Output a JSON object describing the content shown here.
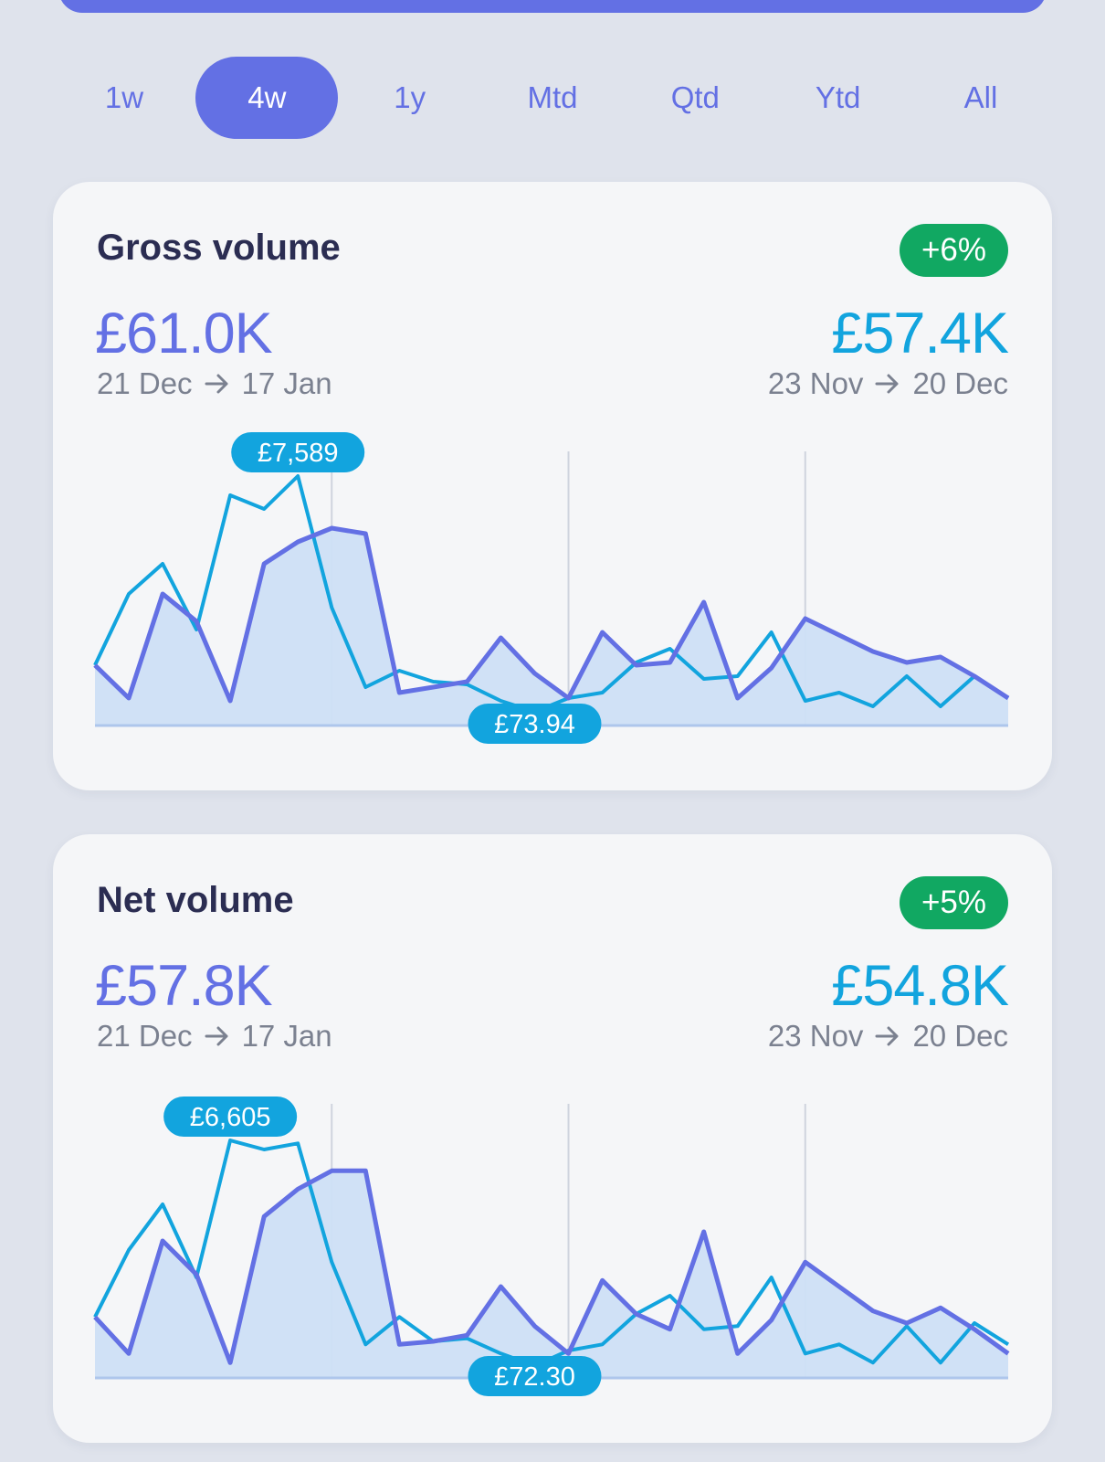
{
  "period_tabs": {
    "items": [
      "1w",
      "4w",
      "1y",
      "Mtd",
      "Qtd",
      "Ytd",
      "All"
    ],
    "active_index": 1
  },
  "cards": [
    {
      "title": "Gross volume",
      "change_badge": "+6%",
      "current_value": "£61.0K",
      "current_range": {
        "from": "21 Dec",
        "to": "17 Jan"
      },
      "previous_value": "£57.4K",
      "previous_range": {
        "from": "23 Nov",
        "to": "20 Dec"
      }
    },
    {
      "title": "Net volume",
      "change_badge": "+5%",
      "current_value": "£57.8K",
      "current_range": {
        "from": "21 Dec",
        "to": "17 Jan"
      },
      "previous_value": "£54.8K",
      "previous_range": {
        "from": "23 Nov",
        "to": "20 Dec"
      }
    }
  ],
  "colors": {
    "accent": "#6370e4",
    "previous": "#12a4de",
    "positive": "#11a862",
    "area_fill": "#cddff5"
  },
  "chart_data": [
    {
      "type": "line",
      "x": [
        1,
        2,
        3,
        4,
        5,
        6,
        7,
        8,
        9,
        10,
        11,
        12,
        13,
        14,
        15,
        16,
        17,
        18,
        19,
        20,
        21,
        22,
        23,
        24,
        25,
        26,
        27,
        28
      ],
      "series": [
        {
          "values": [
            2200,
            1000,
            4800,
            3800,
            900,
            5900,
            6700,
            7200,
            7000,
            1200,
            1400,
            1600,
            3200,
            1900,
            1000,
            3400,
            2200,
            2300,
            4500,
            1000,
            2100,
            3900,
            3300,
            2700,
            2300,
            2500,
            1800,
            1000
          ]
        },
        {
          "values": [
            2200,
            4800,
            5900,
            3500,
            8400,
            7900,
            9100,
            4300,
            1400,
            2000,
            1600,
            1500,
            900,
            500,
            1000,
            1200,
            2300,
            2800,
            1700,
            1800,
            3400,
            900,
            1200,
            700,
            1800,
            700,
            1800,
            1000
          ]
        }
      ],
      "min_label": "£73.94",
      "max_label": "£7,589",
      "min_index": 13,
      "max_index": 6,
      "ylim": [
        0,
        10000
      ]
    },
    {
      "type": "line",
      "x": [
        1,
        2,
        3,
        4,
        5,
        6,
        7,
        8,
        9,
        10,
        11,
        12,
        13,
        14,
        15,
        16,
        17,
        18,
        19,
        20,
        21,
        22,
        23,
        24,
        25,
        26,
        27,
        28
      ],
      "series": [
        {
          "values": [
            2000,
            800,
            4500,
            3400,
            500,
            5300,
            6200,
            6800,
            6800,
            1100,
            1200,
            1400,
            3000,
            1700,
            800,
            3200,
            2100,
            1600,
            4800,
            800,
            1900,
            3800,
            3000,
            2200,
            1800,
            2300,
            1600,
            800
          ]
        },
        {
          "values": [
            2000,
            4200,
            5700,
            3300,
            7800,
            7500,
            7700,
            3800,
            1100,
            2000,
            1200,
            1300,
            800,
            400,
            900,
            1100,
            2100,
            2700,
            1600,
            1700,
            3300,
            800,
            1100,
            500,
            1700,
            500,
            1800,
            1100
          ]
        }
      ],
      "min_label": "£72.30",
      "max_label": "£6,605",
      "min_index": 13,
      "max_index": 4,
      "ylim": [
        0,
        9000
      ]
    }
  ]
}
